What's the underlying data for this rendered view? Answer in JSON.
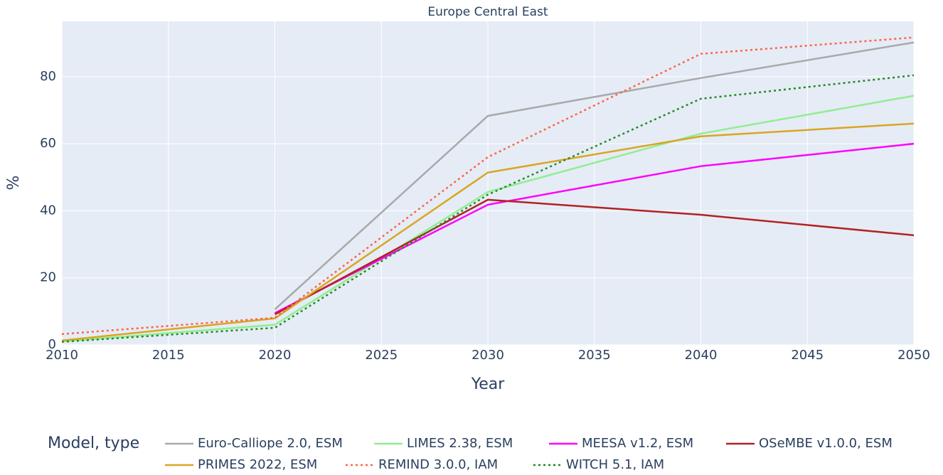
{
  "chart_data": {
    "type": "line",
    "title": "Europe Central East",
    "x_label": "Year",
    "y_label": "%",
    "legend_title": "Model, type",
    "x": [
      2010,
      2020,
      2030,
      2040,
      2050
    ],
    "xlim": [
      2010,
      2050
    ],
    "xticks": [
      2010,
      2015,
      2020,
      2025,
      2030,
      2035,
      2040,
      2045,
      2050
    ],
    "ylim": [
      0,
      96.5
    ],
    "yticks": [
      0,
      20,
      40,
      60,
      80
    ],
    "grid": true,
    "series": [
      {
        "name": "Euro-Calliope 2.0, ESM",
        "color": "#a9a9a9",
        "dash": "solid",
        "values": [
          null,
          10.6,
          68.3,
          79.6,
          90.2
        ]
      },
      {
        "name": "LIMES 2.38, ESM",
        "color": "#90ee90",
        "dash": "solid",
        "values": [
          1,
          6,
          45.6,
          63,
          74.3
        ]
      },
      {
        "name": "MEESA v1.2, ESM",
        "color": "#ff00ff",
        "dash": "solid",
        "values": [
          null,
          9.5,
          41.8,
          53.3,
          60
        ]
      },
      {
        "name": "OSeMBE v1.0.0, ESM",
        "color": "#b22222",
        "dash": "solid",
        "values": [
          null,
          9.1,
          43.3,
          38.8,
          32.7
        ]
      },
      {
        "name": "PRIMES 2022, ESM",
        "color": "#daa520",
        "dash": "solid",
        "values": [
          1.3,
          7.9,
          51.4,
          62.2,
          66
        ]
      },
      {
        "name": "REMIND 3.0.0, IAM",
        "color": "#ff6347",
        "dash": "dot",
        "values": [
          3.2,
          8.1,
          56,
          86.8,
          91.7
        ]
      },
      {
        "name": "WITCH 5.1, IAM",
        "color": "#228b22",
        "dash": "dot",
        "values": [
          0.9,
          5.1,
          44.8,
          73.4,
          80.4
        ]
      }
    ]
  }
}
